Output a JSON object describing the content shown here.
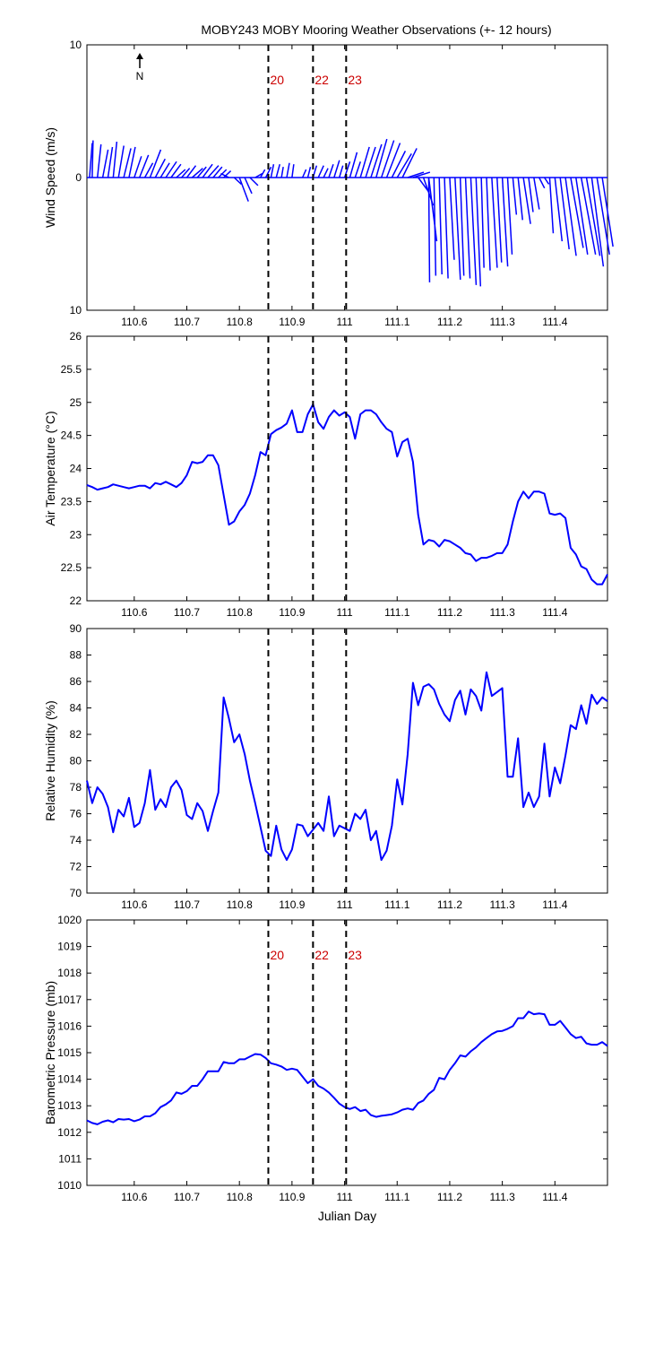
{
  "title": "MOBY243 MOBY Mooring Weather Observations (+- 12 hours)",
  "north_label": "N",
  "colors": {
    "series": "#0000ff",
    "marker_text": "#cc0000",
    "marker_line": "#000000"
  },
  "chart_data": [
    {
      "type": "quiver",
      "ylabel": "Wind Speed (m/s)",
      "xlim": [
        110.51,
        111.5
      ],
      "ylim": [
        -10,
        10
      ],
      "yticks": [
        10,
        0,
        10
      ],
      "xticks": [
        110.6,
        110.7,
        110.8,
        110.9,
        111,
        111.1,
        111.2,
        111.3,
        111.4
      ],
      "markers": [
        {
          "x": 110.855,
          "label": "20"
        },
        {
          "x": 110.94,
          "label": "22"
        },
        {
          "x": 111.003,
          "label": "23"
        }
      ],
      "vectors": [
        [
          110.515,
          0.3,
          2.6
        ],
        [
          110.52,
          0.1,
          2.8
        ],
        [
          110.53,
          0.4,
          2.5
        ],
        [
          110.54,
          0.6,
          2.1
        ],
        [
          110.55,
          0.5,
          2.3
        ],
        [
          110.56,
          0.4,
          2.7
        ],
        [
          110.57,
          0.6,
          2.4
        ],
        [
          110.58,
          0.8,
          2.2
        ],
        [
          110.59,
          0.7,
          2.3
        ],
        [
          110.6,
          0.8,
          1.6
        ],
        [
          110.61,
          1.0,
          1.7
        ],
        [
          110.62,
          0.9,
          1.1
        ],
        [
          110.63,
          1.2,
          2.1
        ],
        [
          110.64,
          1.1,
          1.4
        ],
        [
          110.65,
          1.0,
          1.1
        ],
        [
          110.66,
          1.2,
          1.2
        ],
        [
          110.67,
          1.1,
          1.0
        ],
        [
          110.68,
          1.0,
          0.6
        ],
        [
          110.69,
          0.9,
          0.7
        ],
        [
          110.7,
          1.0,
          0.9
        ],
        [
          110.71,
          1.2,
          0.7
        ],
        [
          110.72,
          1.0,
          0.8
        ],
        [
          110.73,
          1.1,
          1.0
        ],
        [
          110.74,
          1.2,
          0.9
        ],
        [
          110.75,
          1.0,
          0.8
        ],
        [
          110.76,
          0.9,
          0.6
        ],
        [
          110.77,
          0.8,
          0.5
        ],
        [
          110.78,
          -0.9,
          0.3
        ],
        [
          110.79,
          0.8,
          -0.5
        ],
        [
          110.8,
          1.0,
          -1.8
        ],
        [
          110.81,
          0.8,
          -1.2
        ],
        [
          110.82,
          0.9,
          -0.6
        ],
        [
          110.83,
          0.8,
          0.3
        ],
        [
          110.84,
          0.5,
          0.6
        ],
        [
          110.85,
          0.6,
          0.8
        ],
        [
          110.86,
          0.3,
          1.0
        ],
        [
          110.87,
          0.4,
          1.0
        ],
        [
          110.88,
          0.2,
          0.8
        ],
        [
          110.89,
          0.3,
          1.1
        ],
        [
          110.9,
          0.2,
          1.0
        ],
        [
          110.92,
          0.4,
          0.6
        ],
        [
          110.93,
          0.3,
          0.8
        ],
        [
          110.94,
          0.4,
          0.9
        ],
        [
          110.95,
          0.6,
          0.9
        ],
        [
          110.96,
          0.5,
          0.7
        ],
        [
          110.97,
          0.5,
          1.0
        ],
        [
          110.98,
          0.6,
          1.3
        ],
        [
          110.99,
          0.4,
          0.9
        ],
        [
          111.0,
          0.6,
          1.2
        ],
        [
          111.01,
          0.8,
          1.9
        ],
        [
          111.02,
          0.6,
          1.2
        ],
        [
          111.03,
          1.0,
          2.3
        ],
        [
          111.04,
          1.1,
          2.3
        ],
        [
          111.05,
          1.2,
          2.5
        ],
        [
          111.06,
          1.2,
          2.9
        ],
        [
          111.07,
          1.4,
          2.8
        ],
        [
          111.08,
          1.5,
          2.6
        ],
        [
          111.09,
          1.5,
          2.0
        ],
        [
          111.1,
          1.6,
          1.8
        ],
        [
          111.11,
          1.6,
          2.2
        ],
        [
          111.12,
          1.8,
          0.4
        ],
        [
          111.13,
          1.9,
          0.4
        ],
        [
          111.14,
          1.2,
          -1.1
        ],
        [
          111.15,
          1.1,
          -2.1
        ],
        [
          111.16,
          0.9,
          -4.8
        ],
        [
          111.16,
          0.1,
          -7.9
        ],
        [
          111.17,
          0.2,
          -7.4
        ],
        [
          111.18,
          0.3,
          -7.3
        ],
        [
          111.19,
          0.4,
          -7.6
        ],
        [
          111.2,
          0.5,
          -6.2
        ],
        [
          111.21,
          0.6,
          -7.7
        ],
        [
          111.22,
          0.4,
          -7.4
        ],
        [
          111.23,
          0.5,
          -7.6
        ],
        [
          111.24,
          0.6,
          -8.1
        ],
        [
          111.25,
          0.5,
          -8.2
        ],
        [
          111.26,
          0.3,
          -6.8
        ],
        [
          111.27,
          0.4,
          -7.0
        ],
        [
          111.28,
          0.6,
          -6.8
        ],
        [
          111.29,
          0.5,
          -6.4
        ],
        [
          111.3,
          0.6,
          -6.7
        ],
        [
          111.31,
          0.5,
          -5.8
        ],
        [
          111.32,
          0.4,
          -2.8
        ],
        [
          111.33,
          0.5,
          -3.2
        ],
        [
          111.34,
          0.8,
          -3.5
        ],
        [
          111.35,
          0.5,
          -2.6
        ],
        [
          111.36,
          0.6,
          -2.4
        ],
        [
          111.37,
          0.6,
          -0.8
        ],
        [
          111.38,
          0.5,
          -0.5
        ],
        [
          111.39,
          0.4,
          -4.2
        ],
        [
          111.4,
          0.8,
          -4.8
        ],
        [
          111.41,
          1.0,
          -5.4
        ],
        [
          111.42,
          1.2,
          -5.9
        ],
        [
          111.43,
          1.4,
          -5.3
        ],
        [
          111.44,
          1.3,
          -5.8
        ],
        [
          111.45,
          1.6,
          -5.8
        ],
        [
          111.46,
          1.5,
          -5.9
        ],
        [
          111.47,
          1.3,
          -6.7
        ],
        [
          111.48,
          1.4,
          -5.8
        ],
        [
          111.49,
          1.2,
          -5.2
        ]
      ]
    },
    {
      "type": "line",
      "ylabel": "Air Temperature (°C)",
      "xlim": [
        110.51,
        111.5
      ],
      "ylim": [
        22,
        26
      ],
      "yticks": [
        22,
        22.5,
        23,
        23.5,
        24,
        24.5,
        25,
        25.5,
        26
      ],
      "xticks": [
        110.6,
        110.7,
        110.8,
        110.9,
        111,
        111.1,
        111.2,
        111.3,
        111.4
      ],
      "markers": [
        {
          "x": 110.855,
          "label": ""
        },
        {
          "x": 110.94,
          "label": ""
        },
        {
          "x": 111.003,
          "label": ""
        }
      ],
      "x": [
        110.51,
        110.52,
        110.53,
        110.54,
        110.55,
        110.56,
        110.57,
        110.58,
        110.59,
        110.6,
        110.61,
        110.62,
        110.63,
        110.64,
        110.65,
        110.66,
        110.67,
        110.68,
        110.69,
        110.7,
        110.71,
        110.72,
        110.73,
        110.74,
        110.75,
        110.76,
        110.77,
        110.78,
        110.79,
        110.8,
        110.81,
        110.82,
        110.83,
        110.84,
        110.85,
        110.86,
        110.87,
        110.88,
        110.89,
        110.9,
        110.91,
        110.92,
        110.93,
        110.94,
        110.95,
        110.96,
        110.97,
        110.98,
        110.99,
        111.0,
        111.01,
        111.02,
        111.03,
        111.04,
        111.05,
        111.06,
        111.07,
        111.08,
        111.09,
        111.1,
        111.11,
        111.12,
        111.13,
        111.14,
        111.15,
        111.16,
        111.17,
        111.18,
        111.19,
        111.2,
        111.21,
        111.22,
        111.23,
        111.24,
        111.25,
        111.26,
        111.27,
        111.28,
        111.29,
        111.3,
        111.31,
        111.32,
        111.33,
        111.34,
        111.35,
        111.36,
        111.37,
        111.38,
        111.39,
        111.4,
        111.41,
        111.42,
        111.43,
        111.44,
        111.45,
        111.46,
        111.47,
        111.48,
        111.49,
        111.5
      ],
      "y": [
        23.75,
        23.72,
        23.68,
        23.7,
        23.72,
        23.76,
        23.74,
        23.72,
        23.7,
        23.72,
        23.74,
        23.74,
        23.7,
        23.78,
        23.76,
        23.8,
        23.76,
        23.72,
        23.78,
        23.9,
        24.1,
        24.08,
        24.1,
        24.2,
        24.2,
        24.05,
        23.6,
        23.15,
        23.2,
        23.35,
        23.45,
        23.62,
        23.9,
        24.25,
        24.2,
        24.52,
        24.58,
        24.62,
        24.68,
        24.88,
        24.55,
        24.55,
        24.82,
        24.97,
        24.7,
        24.6,
        24.78,
        24.88,
        24.8,
        24.85,
        24.78,
        24.45,
        24.82,
        24.88,
        24.88,
        24.82,
        24.7,
        24.6,
        24.55,
        24.18,
        24.4,
        24.45,
        24.1,
        23.3,
        22.85,
        22.92,
        22.9,
        22.82,
        22.92,
        22.9,
        22.85,
        22.8,
        22.72,
        22.7,
        22.6,
        22.65,
        22.65,
        22.68,
        22.72,
        22.72,
        22.85,
        23.2,
        23.5,
        23.65,
        23.55,
        23.65,
        23.65,
        23.62,
        23.32,
        23.3,
        23.32,
        23.25,
        22.8,
        22.7,
        22.52,
        22.48,
        22.32,
        22.25,
        22.25,
        22.4
      ]
    },
    {
      "type": "line",
      "ylabel": "Relative Humidity (%)",
      "xlim": [
        110.51,
        111.5
      ],
      "ylim": [
        70,
        90
      ],
      "yticks": [
        70,
        72,
        74,
        76,
        78,
        80,
        82,
        84,
        86,
        88,
        90
      ],
      "xticks": [
        110.6,
        110.7,
        110.8,
        110.9,
        111,
        111.1,
        111.2,
        111.3,
        111.4
      ],
      "markers": [
        {
          "x": 110.855,
          "label": ""
        },
        {
          "x": 110.94,
          "label": ""
        },
        {
          "x": 111.003,
          "label": ""
        }
      ],
      "x": [
        110.51,
        110.52,
        110.53,
        110.54,
        110.55,
        110.56,
        110.57,
        110.58,
        110.59,
        110.6,
        110.61,
        110.62,
        110.63,
        110.64,
        110.65,
        110.66,
        110.67,
        110.68,
        110.69,
        110.7,
        110.71,
        110.72,
        110.73,
        110.74,
        110.75,
        110.76,
        110.77,
        110.78,
        110.79,
        110.8,
        110.81,
        110.82,
        110.83,
        110.84,
        110.85,
        110.86,
        110.87,
        110.88,
        110.89,
        110.9,
        110.91,
        110.92,
        110.93,
        110.94,
        110.95,
        110.96,
        110.97,
        110.98,
        110.99,
        111.0,
        111.01,
        111.02,
        111.03,
        111.04,
        111.05,
        111.06,
        111.07,
        111.08,
        111.09,
        111.1,
        111.11,
        111.12,
        111.13,
        111.14,
        111.15,
        111.16,
        111.17,
        111.18,
        111.19,
        111.2,
        111.21,
        111.22,
        111.23,
        111.24,
        111.25,
        111.26,
        111.27,
        111.28,
        111.29,
        111.3,
        111.31,
        111.32,
        111.33,
        111.34,
        111.35,
        111.36,
        111.37,
        111.38,
        111.39,
        111.4,
        111.41,
        111.42,
        111.43,
        111.44,
        111.45,
        111.46,
        111.47,
        111.48,
        111.49,
        111.5
      ],
      "y": [
        78.5,
        76.8,
        78.0,
        77.5,
        76.5,
        74.6,
        76.3,
        75.8,
        77.2,
        75.0,
        75.3,
        76.8,
        79.3,
        76.3,
        77.1,
        76.5,
        78.0,
        78.5,
        77.8,
        75.9,
        75.6,
        76.8,
        76.2,
        74.7,
        76.2,
        77.6,
        84.8,
        83.2,
        81.4,
        82.0,
        80.5,
        78.5,
        76.8,
        75.0,
        73.2,
        72.8,
        75.1,
        73.3,
        72.5,
        73.3,
        75.2,
        75.1,
        74.3,
        74.8,
        75.3,
        74.7,
        77.3,
        74.3,
        75.1,
        74.9,
        74.7,
        76.0,
        75.6,
        76.3,
        74.0,
        74.7,
        72.5,
        73.2,
        75.1,
        78.6,
        76.7,
        80.5,
        85.9,
        84.2,
        85.6,
        85.8,
        85.4,
        84.3,
        83.5,
        83.0,
        84.6,
        85.3,
        83.5,
        85.4,
        84.9,
        83.8,
        86.7,
        84.9,
        85.2,
        85.5,
        78.8,
        78.8,
        81.7,
        76.5,
        77.6,
        76.5,
        77.3,
        81.3,
        77.3,
        79.5,
        78.3,
        80.4,
        82.7,
        82.4,
        84.2,
        82.8,
        85.0,
        84.3,
        84.8,
        84.5
      ]
    },
    {
      "type": "line",
      "ylabel": "Barometric Pressure (mb)",
      "xlabel": "Julian Day",
      "xlim": [
        110.51,
        111.5
      ],
      "ylim": [
        1010,
        1020
      ],
      "yticks": [
        1010,
        1011,
        1012,
        1013,
        1014,
        1015,
        1016,
        1017,
        1018,
        1019,
        1020
      ],
      "xticks": [
        110.6,
        110.7,
        110.8,
        110.9,
        111,
        111.1,
        111.2,
        111.3,
        111.4
      ],
      "markers": [
        {
          "x": 110.855,
          "label": "20"
        },
        {
          "x": 110.94,
          "label": "22"
        },
        {
          "x": 111.003,
          "label": "23"
        }
      ],
      "x": [
        110.51,
        110.52,
        110.53,
        110.54,
        110.55,
        110.56,
        110.57,
        110.58,
        110.59,
        110.6,
        110.61,
        110.62,
        110.63,
        110.64,
        110.65,
        110.66,
        110.67,
        110.68,
        110.69,
        110.7,
        110.71,
        110.72,
        110.73,
        110.74,
        110.75,
        110.76,
        110.77,
        110.78,
        110.79,
        110.8,
        110.81,
        110.82,
        110.83,
        110.84,
        110.85,
        110.86,
        110.87,
        110.88,
        110.89,
        110.9,
        110.91,
        110.92,
        110.93,
        110.94,
        110.95,
        110.96,
        110.97,
        110.98,
        110.99,
        111.0,
        111.01,
        111.02,
        111.03,
        111.04,
        111.05,
        111.06,
        111.07,
        111.08,
        111.09,
        111.1,
        111.11,
        111.12,
        111.13,
        111.14,
        111.15,
        111.16,
        111.17,
        111.18,
        111.19,
        111.2,
        111.21,
        111.22,
        111.23,
        111.24,
        111.25,
        111.26,
        111.27,
        111.28,
        111.29,
        111.3,
        111.31,
        111.32,
        111.33,
        111.34,
        111.35,
        111.36,
        111.37,
        111.38,
        111.39,
        111.4,
        111.41,
        111.42,
        111.43,
        111.44,
        111.45,
        111.46,
        111.47,
        111.48,
        111.49,
        111.5
      ],
      "y": [
        1012.45,
        1012.35,
        1012.3,
        1012.4,
        1012.45,
        1012.38,
        1012.5,
        1012.48,
        1012.5,
        1012.42,
        1012.48,
        1012.6,
        1012.6,
        1012.72,
        1012.95,
        1013.05,
        1013.2,
        1013.5,
        1013.45,
        1013.55,
        1013.75,
        1013.75,
        1014.0,
        1014.3,
        1014.3,
        1014.3,
        1014.65,
        1014.6,
        1014.6,
        1014.75,
        1014.75,
        1014.85,
        1014.95,
        1014.93,
        1014.8,
        1014.6,
        1014.55,
        1014.48,
        1014.35,
        1014.4,
        1014.35,
        1014.1,
        1013.85,
        1014.0,
        1013.75,
        1013.65,
        1013.5,
        1013.3,
        1013.08,
        1012.95,
        1012.88,
        1012.95,
        1012.8,
        1012.85,
        1012.65,
        1012.58,
        1012.62,
        1012.65,
        1012.68,
        1012.75,
        1012.85,
        1012.9,
        1012.85,
        1013.1,
        1013.2,
        1013.45,
        1013.6,
        1014.05,
        1014.0,
        1014.35,
        1014.6,
        1014.9,
        1014.85,
        1015.05,
        1015.2,
        1015.4,
        1015.55,
        1015.7,
        1015.8,
        1015.82,
        1015.9,
        1016.0,
        1016.3,
        1016.3,
        1016.55,
        1016.45,
        1016.48,
        1016.45,
        1016.05,
        1016.05,
        1016.2,
        1015.95,
        1015.7,
        1015.55,
        1015.6,
        1015.35,
        1015.3,
        1015.3,
        1015.4,
        1015.25
      ]
    }
  ]
}
